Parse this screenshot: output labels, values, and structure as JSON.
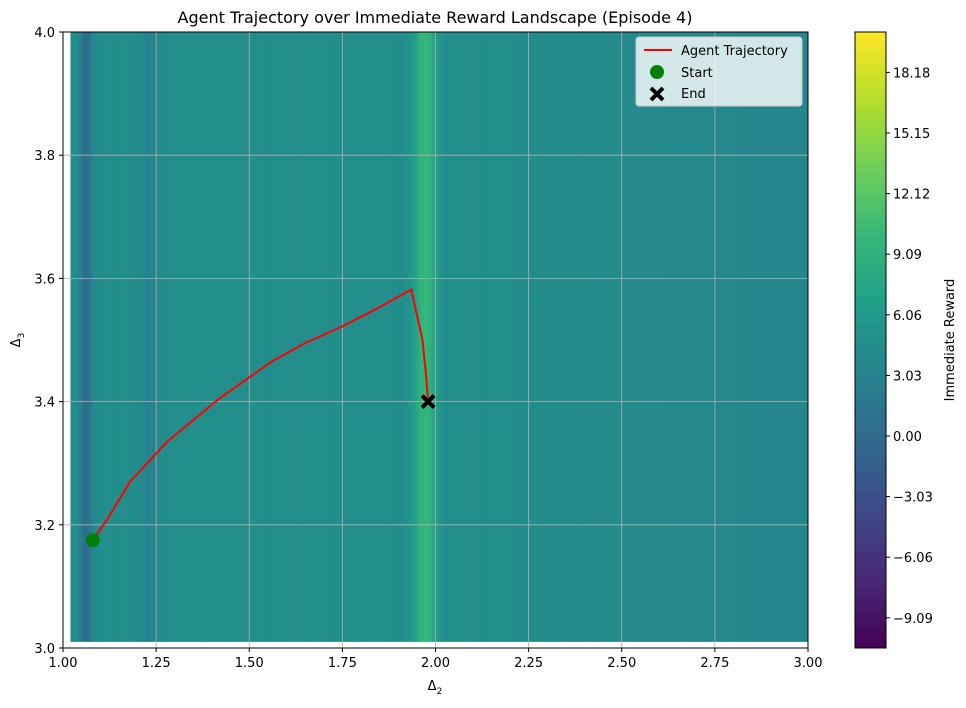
{
  "chart_data": {
    "type": "heatmap",
    "title": "Agent Trajectory over Immediate Reward Landscape (Episode 4)",
    "xlabel": "Δ",
    "xlabel_sub": "2",
    "ylabel": "Δ",
    "ylabel_sub": "3",
    "xlim": [
      1.0,
      3.0
    ],
    "ylim": [
      3.0,
      4.0
    ],
    "x_ticks": [
      "1.00",
      "1.25",
      "1.50",
      "1.75",
      "2.00",
      "2.25",
      "2.50",
      "2.75",
      "3.00"
    ],
    "x_tick_values": [
      1.0,
      1.25,
      1.5,
      1.75,
      2.0,
      2.25,
      2.5,
      2.75,
      3.0
    ],
    "y_ticks": [
      "3.0",
      "3.2",
      "3.4",
      "3.6",
      "3.8",
      "4.0"
    ],
    "y_tick_values": [
      3.0,
      3.2,
      3.4,
      3.6,
      3.8,
      4.0
    ],
    "grid": true,
    "colorbar": {
      "label": "Immediate Reward",
      "range": [
        -10.6,
        20.2
      ],
      "ticks": [
        "−9.09",
        "−6.06",
        "−3.03",
        "0.00",
        "3.03",
        "6.06",
        "9.09",
        "12.12",
        "15.15",
        "18.18"
      ],
      "tick_values": [
        -9.09,
        -6.06,
        -3.03,
        0.0,
        3.03,
        6.06,
        9.09,
        12.12,
        15.15,
        18.18
      ],
      "colormap": "viridis"
    },
    "landscape": {
      "background_reward": 4.5,
      "low_bands": [
        {
          "x_center": 1.06,
          "depth": -4.5
        },
        {
          "x_center": 1.23,
          "depth": -1.5
        }
      ],
      "high_ridge": {
        "x_center": 1.97,
        "peak": 11.0
      }
    },
    "series": [
      {
        "name": "Agent Trajectory",
        "type": "line",
        "color": "#ff0000",
        "x": [
          1.08,
          1.12,
          1.18,
          1.28,
          1.42,
          1.56,
          1.65,
          1.75,
          1.84,
          1.935,
          1.965,
          1.975,
          1.98
        ],
        "y": [
          3.175,
          3.21,
          3.27,
          3.335,
          3.405,
          3.465,
          3.495,
          3.522,
          3.55,
          3.582,
          3.5,
          3.44,
          3.4
        ]
      },
      {
        "name": "Start",
        "type": "scatter",
        "marker": "circle",
        "color": "#008000",
        "x": [
          1.08
        ],
        "y": [
          3.175
        ]
      },
      {
        "name": "End",
        "type": "scatter",
        "marker": "x",
        "color": "#000000",
        "x": [
          1.98
        ],
        "y": [
          3.4
        ]
      }
    ],
    "legend": {
      "position": "top-right",
      "entries": [
        "Agent Trajectory",
        "Start",
        "End"
      ]
    }
  }
}
